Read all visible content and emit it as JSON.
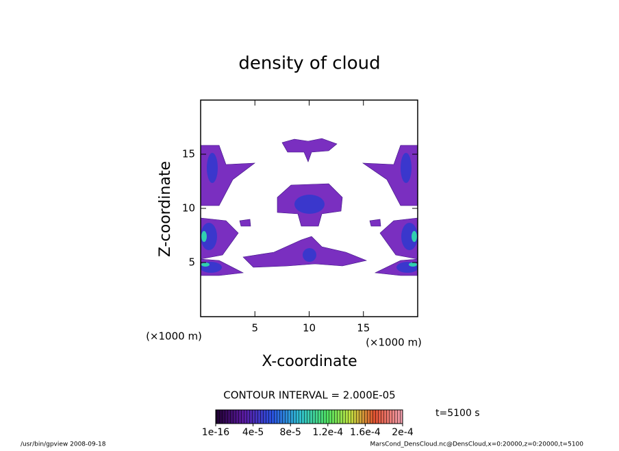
{
  "chart_data": {
    "type": "contour",
    "title": "density of cloud",
    "xlabel": "X-coordinate",
    "ylabel": "Z-coordinate",
    "x_unit": "(×1000 m)",
    "y_unit": "(×1000 m)",
    "xlim": [
      0,
      20
    ],
    "xticks": [
      5,
      10,
      15
    ],
    "ylim": [
      0,
      20
    ],
    "yticks": [
      5,
      10,
      15
    ],
    "contour_interval": "CONTOUR INTERVAL = 2.000E-05",
    "colorbar_lim": [
      0,
      0.0002
    ],
    "colorbar_ticks": [
      {
        "value": 1e-16,
        "label": "1e-16"
      },
      {
        "value": 4e-05,
        "label": "4e-5"
      },
      {
        "value": 8e-05,
        "label": "8e-5"
      },
      {
        "value": 0.00012,
        "label": "1.2e-4"
      },
      {
        "value": 0.00016,
        "label": "1.6e-4"
      },
      {
        "value": 0.0002,
        "label": "2e-4"
      }
    ],
    "time_label": "t=5100 s",
    "footer_left": "/usr/bin/gpview  2008-09-18",
    "footer_right": "MarsCond_DensCloud.nc@DensCloud,x=0:20000,z=0:20000,t=5100"
  }
}
